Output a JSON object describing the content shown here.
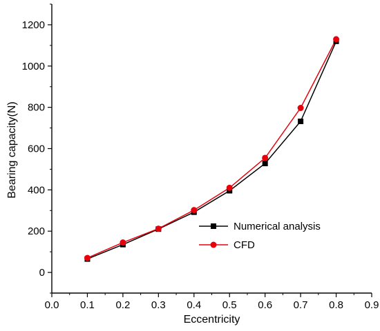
{
  "chart_data": {
    "type": "line",
    "xlabel": "Eccentricity",
    "ylabel": "Bearing capacity(N)",
    "xlim": [
      0.0,
      0.9
    ],
    "ylim": [
      -100,
      1300
    ],
    "x_ticks": [
      0.0,
      0.1,
      0.2,
      0.3,
      0.4,
      0.5,
      0.6,
      0.7,
      0.8,
      0.9
    ],
    "x_tick_labels": [
      "0.0",
      "0.1",
      "0.2",
      "0.3",
      "0.4",
      "0.5",
      "0.6",
      "0.7",
      "0.8",
      "0.9"
    ],
    "y_ticks": [
      0,
      200,
      400,
      600,
      800,
      1000,
      1200
    ],
    "y_tick_labels": [
      "0",
      "200",
      "400",
      "600",
      "800",
      "1000",
      "1200"
    ],
    "grid": false,
    "legend_position": "lower-right",
    "series": [
      {
        "name": "Numerical analysis",
        "color": "#000000",
        "marker": "square",
        "x": [
          0.1,
          0.2,
          0.3,
          0.4,
          0.5,
          0.6,
          0.7,
          0.8
        ],
        "values": [
          65,
          135,
          210,
          292,
          396,
          528,
          732,
          1120
        ]
      },
      {
        "name": "CFD",
        "color": "#e8000b",
        "marker": "circle",
        "x": [
          0.1,
          0.2,
          0.3,
          0.4,
          0.5,
          0.6,
          0.7,
          0.8
        ],
        "values": [
          70,
          145,
          212,
          302,
          410,
          555,
          797,
          1130
        ]
      }
    ]
  }
}
